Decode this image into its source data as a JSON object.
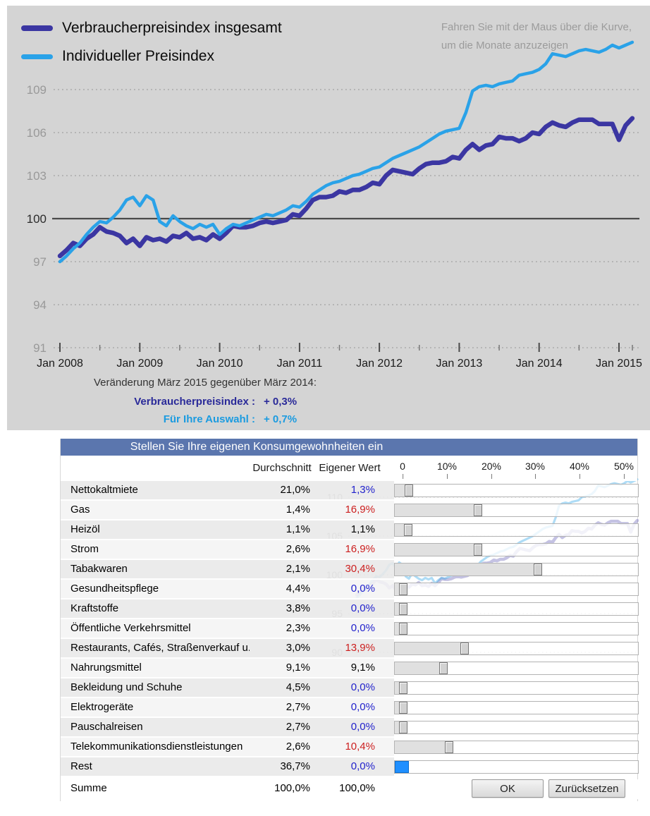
{
  "colors": {
    "vpi_line": "#3b36a2",
    "individual_line": "#2aa2e8",
    "chart_background": "#d4d4d4",
    "panel_header": "#5b76ae",
    "value_blue": "#2222cc",
    "value_red": "#cc1f1f",
    "rest_handle_blue": "#1f8fff",
    "vpi_text": "#2a2a99",
    "individual_text": "#1b9be0"
  },
  "legend": [
    {
      "label": "Verbraucherpreisindex insgesamt",
      "color": "#3b36a2"
    },
    {
      "label": "Individueller Preisindex",
      "color": "#2aa2e8"
    }
  ],
  "hint": {
    "line1": "Fahren Sie mit der Maus über die Kurve,",
    "line2": "um die Monate anzuzeigen"
  },
  "chart_data": {
    "type": "line",
    "title": "",
    "xlabel": "",
    "ylabel": "",
    "x_tick_labels": [
      "Jan 2008",
      "Jan 2009",
      "Jan 2010",
      "Jan 2011",
      "Jan 2012",
      "Jan 2013",
      "Jan 2014",
      "Jan 2015"
    ],
    "x_range": [
      "Jan 2008",
      "Mär 2015"
    ],
    "y_ticks": [
      91,
      94,
      97,
      100,
      103,
      106,
      109
    ],
    "ylim": [
      91,
      113
    ],
    "baseline": 100,
    "grid": "dotted",
    "legend_position": "top-left",
    "series": [
      {
        "name": "Verbraucherpreisindex insgesamt",
        "color": "#3b36a2",
        "values": [
          97.4,
          97.8,
          98.3,
          98.1,
          98.6,
          98.9,
          99.4,
          99.1,
          99.0,
          98.8,
          98.3,
          98.6,
          98.1,
          98.7,
          98.5,
          98.6,
          98.4,
          98.8,
          98.7,
          99.0,
          98.6,
          98.7,
          98.5,
          98.9,
          98.6,
          99.0,
          99.5,
          99.4,
          99.4,
          99.5,
          99.7,
          99.8,
          99.7,
          99.8,
          99.9,
          100.3,
          100.2,
          100.7,
          101.3,
          101.5,
          101.5,
          101.6,
          101.9,
          101.8,
          102.0,
          102.0,
          102.2,
          102.5,
          102.4,
          103.0,
          103.4,
          103.3,
          103.2,
          103.1,
          103.5,
          103.8,
          103.9,
          103.9,
          104.0,
          104.3,
          104.2,
          104.8,
          105.2,
          104.8,
          105.1,
          105.2,
          105.7,
          105.6,
          105.6,
          105.4,
          105.6,
          106.0,
          105.9,
          106.4,
          106.7,
          106.5,
          106.4,
          106.7,
          106.9,
          106.9,
          106.9,
          106.6,
          106.6,
          106.6,
          105.5,
          106.5,
          107.0
        ]
      },
      {
        "name": "Individueller Preisindex",
        "color": "#2aa2e8",
        "values": [
          97.0,
          97.4,
          97.9,
          98.3,
          98.9,
          99.4,
          99.8,
          99.7,
          100.1,
          100.6,
          101.3,
          101.5,
          100.9,
          101.6,
          101.3,
          99.8,
          99.5,
          100.2,
          99.8,
          99.5,
          99.3,
          99.6,
          99.4,
          99.6,
          98.9,
          99.3,
          99.6,
          99.5,
          99.7,
          99.9,
          100.1,
          100.3,
          100.2,
          100.4,
          100.6,
          100.9,
          100.8,
          101.2,
          101.7,
          102.0,
          102.3,
          102.5,
          102.6,
          102.8,
          103.0,
          103.1,
          103.3,
          103.5,
          103.6,
          103.9,
          104.2,
          104.4,
          104.6,
          104.8,
          105.0,
          105.3,
          105.6,
          105.9,
          106.1,
          106.2,
          106.3,
          107.4,
          108.9,
          109.2,
          109.3,
          109.2,
          109.4,
          109.5,
          109.6,
          110.0,
          110.1,
          110.2,
          110.4,
          110.8,
          111.5,
          111.4,
          111.3,
          111.5,
          111.7,
          111.8,
          111.7,
          111.6,
          111.8,
          112.1,
          111.9,
          112.1,
          112.3
        ]
      }
    ]
  },
  "change_info": {
    "title": "Veränderung März 2015 gegenüber März 2014:",
    "rows": [
      {
        "label": "Verbraucherpreisindex :",
        "value": "+ 0,3%"
      },
      {
        "label": "Für Ihre Auswahl :",
        "value": "+ 0,7%"
      }
    ]
  },
  "panel": {
    "title": "Stellen Sie Ihre eigenen Konsumgewohnheiten ein",
    "col_avg": "Durchschnitt",
    "col_own": "Eigener Wert",
    "scale": {
      "ticks": [
        "0",
        "10%",
        "20%",
        "30%",
        "40%",
        "50%"
      ],
      "max_pct": 50
    },
    "rows": [
      {
        "label": "Nettokaltmiete",
        "avg": "21,0%",
        "own": "1,3%",
        "own_color": "blue",
        "slider_pct": 1.3
      },
      {
        "label": "Gas",
        "avg": "1,4%",
        "own": "16,9%",
        "own_color": "red",
        "slider_pct": 16.9
      },
      {
        "label": "Heizöl",
        "avg": "1,1%",
        "own": "1,1%",
        "own_color": "black",
        "slider_pct": 1.1
      },
      {
        "label": "Strom",
        "avg": "2,6%",
        "own": "16,9%",
        "own_color": "red",
        "slider_pct": 16.9
      },
      {
        "label": "Tabakwaren",
        "avg": "2,1%",
        "own": "30,4%",
        "own_color": "red",
        "slider_pct": 30.4
      },
      {
        "label": "Gesundheitspflege",
        "avg": "4,4%",
        "own": "0,0%",
        "own_color": "blue",
        "slider_pct": 0
      },
      {
        "label": "Kraftstoffe",
        "avg": "3,8%",
        "own": "0,0%",
        "own_color": "blue",
        "slider_pct": 0
      },
      {
        "label": "Öffentliche Verkehrsmittel",
        "avg": "2,3%",
        "own": "0,0%",
        "own_color": "blue",
        "slider_pct": 0
      },
      {
        "label": "Restaurants, Cafés, Straßenverkauf u.Ä.",
        "avg": "3,0%",
        "own": "13,9%",
        "own_color": "red",
        "slider_pct": 13.9
      },
      {
        "label": "Nahrungsmittel",
        "avg": "9,1%",
        "own": "9,1%",
        "own_color": "black",
        "slider_pct": 9.1
      },
      {
        "label": "Bekleidung und Schuhe",
        "avg": "4,5%",
        "own": "0,0%",
        "own_color": "blue",
        "slider_pct": 0
      },
      {
        "label": "Elektrogeräte",
        "avg": "2,7%",
        "own": "0,0%",
        "own_color": "blue",
        "slider_pct": 0
      },
      {
        "label": "Pauschalreisen",
        "avg": "2,7%",
        "own": "0,0%",
        "own_color": "blue",
        "slider_pct": 0
      },
      {
        "label": "Telekommunikationsdienstleistungen",
        "avg": "2,6%",
        "own": "10,4%",
        "own_color": "red",
        "slider_pct": 10.4
      },
      {
        "label": "Rest",
        "avg": "36,7%",
        "own": "0,0%",
        "own_color": "blue",
        "slider_pct": 0,
        "rest": true
      }
    ],
    "sum_row": {
      "label": "Summe",
      "avg": "100,0%",
      "own": "100,0%"
    },
    "buttons": {
      "ok": "OK",
      "reset": "Zurücksetzen"
    }
  }
}
